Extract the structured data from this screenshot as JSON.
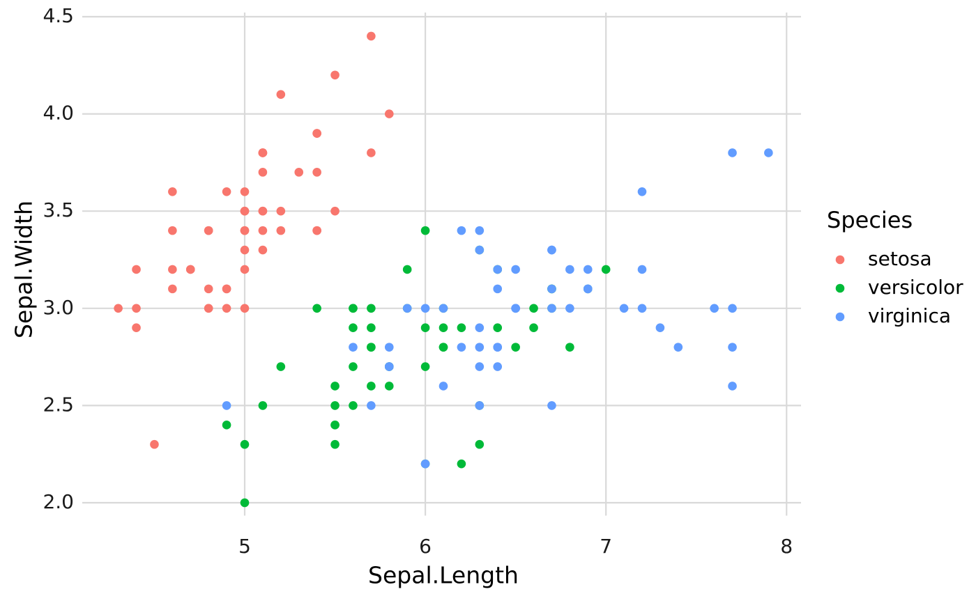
{
  "chart_data": {
    "type": "scatter",
    "x_label": "Sepal.Length",
    "y_label": "Sepal.Width",
    "legend_title": "Species",
    "legend_position": "right",
    "grid": true,
    "xlim": [
      4.12,
      8.08
    ],
    "ylim": [
      1.88,
      4.62
    ],
    "xticks": [
      5,
      6,
      7,
      8
    ],
    "yticks": [
      {
        "value": 2,
        "label": "2.0"
      },
      2.5,
      {
        "value": 3,
        "label": "3.0"
      },
      3.5,
      {
        "value": 4,
        "label": "4.0"
      },
      4.5
    ],
    "series": [
      {
        "name": "setosa",
        "color": "#F8766D",
        "x": [
          5.1,
          4.9,
          4.7,
          4.6,
          5.0,
          5.4,
          4.6,
          5.0,
          4.4,
          4.9,
          5.4,
          4.8,
          4.8,
          4.3,
          5.8,
          5.7,
          5.4,
          5.1,
          5.7,
          5.1,
          5.4,
          5.1,
          4.6,
          5.1,
          4.8,
          5.0,
          5.0,
          5.2,
          5.2,
          4.7,
          4.8,
          5.4,
          5.2,
          5.5,
          4.9,
          5.0,
          5.5,
          4.9,
          4.4,
          5.1,
          5.0,
          4.5,
          4.4,
          5.0,
          5.1,
          4.8,
          5.1,
          4.6,
          5.3,
          5.0
        ],
        "values": [
          3.5,
          3.0,
          3.2,
          3.1,
          3.6,
          3.9,
          3.4,
          3.4,
          2.9,
          3.1,
          3.7,
          3.4,
          3.0,
          3.0,
          4.0,
          4.4,
          3.9,
          3.5,
          3.8,
          3.8,
          3.4,
          3.7,
          3.6,
          3.3,
          3.4,
          3.0,
          3.4,
          3.5,
          3.4,
          3.2,
          3.1,
          3.4,
          4.1,
          4.2,
          3.1,
          3.2,
          3.5,
          3.6,
          3.0,
          3.4,
          3.5,
          2.3,
          3.2,
          3.5,
          3.8,
          3.0,
          3.8,
          3.2,
          3.7,
          3.3
        ]
      },
      {
        "name": "versicolor",
        "color": "#00BA38",
        "x": [
          7.0,
          6.4,
          6.9,
          5.5,
          6.5,
          5.7,
          6.3,
          4.9,
          6.6,
          5.2,
          5.0,
          5.9,
          6.0,
          6.1,
          5.6,
          6.7,
          5.6,
          5.8,
          6.2,
          5.6,
          5.9,
          6.1,
          6.3,
          6.1,
          6.4,
          6.6,
          6.8,
          6.7,
          6.0,
          5.7,
          5.5,
          5.5,
          5.8,
          6.0,
          5.4,
          6.0,
          6.7,
          6.3,
          5.6,
          5.5,
          5.5,
          6.1,
          5.8,
          5.0,
          5.6,
          5.7,
          5.7,
          6.2,
          5.1,
          5.7
        ],
        "values": [
          3.2,
          3.2,
          3.1,
          2.3,
          2.8,
          2.8,
          3.3,
          2.4,
          2.9,
          2.7,
          2.0,
          3.0,
          2.2,
          2.9,
          2.9,
          3.1,
          3.0,
          2.7,
          2.2,
          2.5,
          3.2,
          2.8,
          2.5,
          2.8,
          2.9,
          3.0,
          2.8,
          3.0,
          2.9,
          2.6,
          2.4,
          2.4,
          2.7,
          2.7,
          3.0,
          3.4,
          3.1,
          2.3,
          3.0,
          2.5,
          2.6,
          3.0,
          2.6,
          2.3,
          2.7,
          3.0,
          2.9,
          2.9,
          2.5,
          2.8
        ]
      },
      {
        "name": "virginica",
        "color": "#619CFF",
        "x": [
          6.3,
          5.8,
          7.1,
          6.3,
          6.5,
          7.6,
          4.9,
          7.3,
          6.7,
          7.2,
          6.5,
          6.4,
          6.8,
          5.7,
          5.8,
          6.4,
          6.5,
          7.7,
          7.7,
          6.0,
          6.9,
          5.6,
          7.7,
          6.3,
          6.7,
          7.2,
          6.2,
          6.1,
          6.4,
          7.2,
          7.4,
          7.9,
          6.4,
          6.3,
          6.1,
          7.7,
          6.3,
          6.4,
          6.0,
          6.9,
          6.7,
          6.9,
          5.8,
          6.8,
          6.7,
          6.7,
          6.3,
          6.5,
          6.2,
          5.9
        ],
        "values": [
          3.3,
          2.7,
          3.0,
          2.9,
          3.0,
          3.0,
          2.5,
          2.9,
          2.5,
          3.6,
          3.2,
          2.7,
          3.0,
          2.5,
          2.8,
          3.2,
          3.0,
          3.8,
          2.6,
          2.2,
          3.2,
          2.8,
          2.8,
          2.7,
          3.3,
          3.2,
          2.8,
          3.0,
          2.8,
          3.0,
          2.8,
          3.8,
          2.8,
          2.8,
          2.6,
          3.0,
          3.4,
          3.1,
          3.0,
          3.1,
          3.1,
          3.1,
          2.7,
          3.2,
          3.3,
          3.0,
          2.5,
          3.0,
          3.4,
          3.0
        ]
      }
    ]
  }
}
